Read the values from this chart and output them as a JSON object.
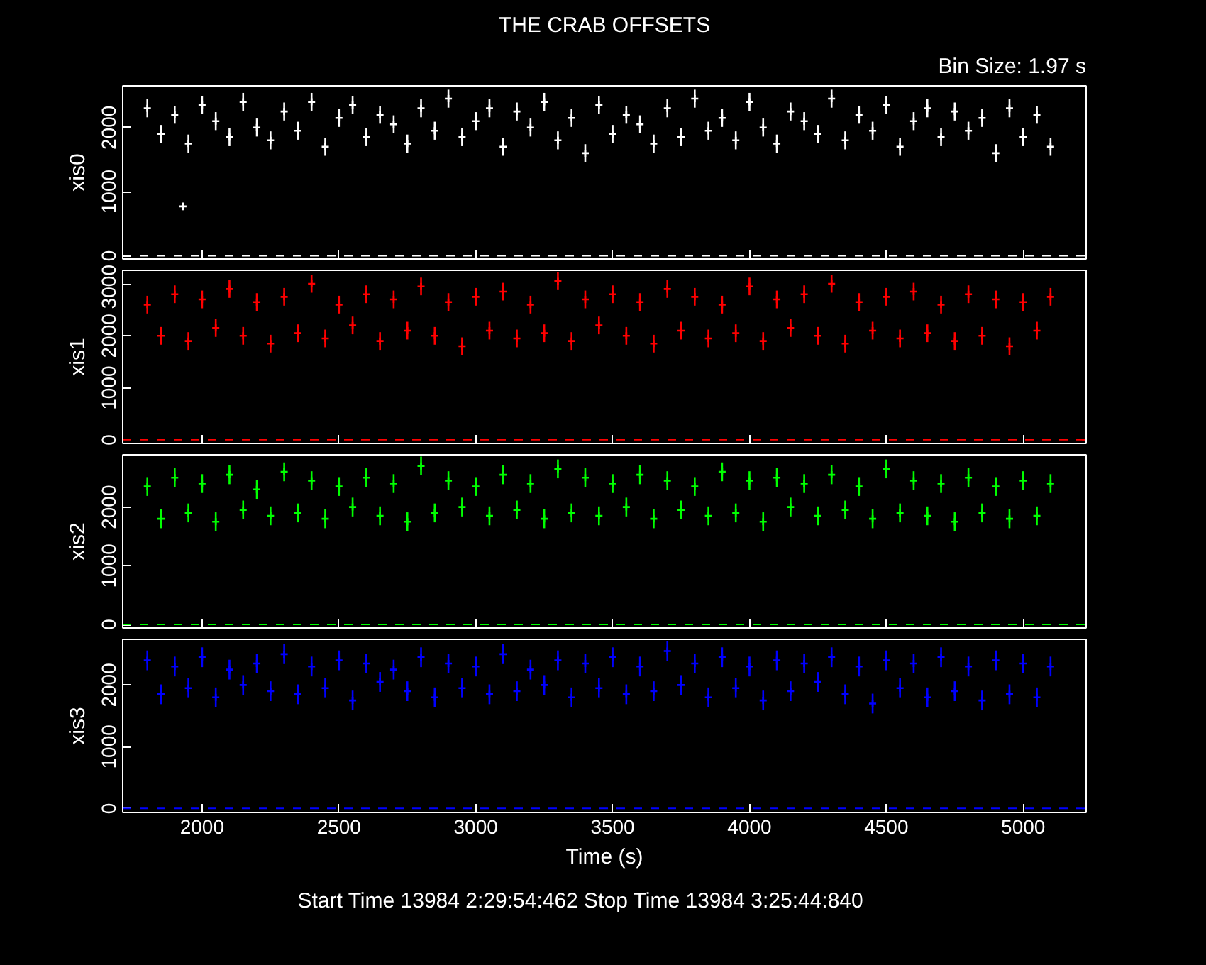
{
  "chart_data": [
    {
      "type": "scatter",
      "title": "THE CRAB OFFSETS",
      "annotations": [
        "Bin Size: 1.97 s"
      ],
      "ylabel": "xis0",
      "marker": "cross",
      "grid": false,
      "tick_labels": "y",
      "xlim": [
        1710,
        5230
      ],
      "xticks": [
        2000,
        2500,
        3000,
        3500,
        4000,
        4500,
        5000
      ],
      "ylim": [
        -50,
        2650
      ],
      "yticks": [
        0,
        1000,
        2000
      ],
      "ref_lines": [
        {
          "axis": "y",
          "value": 0,
          "color": "#ffffff",
          "line_style": "dashed"
        }
      ],
      "x": [
        1800,
        1850,
        1900,
        1930,
        1950,
        2000,
        2050,
        2100,
        2150,
        2200,
        2250,
        2300,
        2350,
        2400,
        2450,
        2500,
        2550,
        2600,
        2650,
        2700,
        2750,
        2800,
        2850,
        2900,
        2950,
        3000,
        3050,
        3100,
        3150,
        3200,
        3250,
        3300,
        3350,
        3400,
        3450,
        3500,
        3550,
        3600,
        3650,
        3700,
        3750,
        3800,
        3850,
        3900,
        3950,
        4000,
        4050,
        4100,
        4150,
        4200,
        4250,
        4300,
        4350,
        4400,
        4450,
        4500,
        4550,
        4600,
        4650,
        4700,
        4750,
        4800,
        4850,
        4900,
        4950,
        5000,
        5050,
        5100
      ],
      "series": [
        {
          "color": "#ffffff",
          "values": [
            2300,
            1900,
            2200,
            770,
            1750,
            2350,
            2100,
            1850,
            2400,
            2000,
            1800,
            2250,
            1950,
            2400,
            1700,
            2150,
            2350,
            1850,
            2200,
            2050,
            1750,
            2300,
            1950,
            2450,
            1850,
            2100,
            2300,
            1700,
            2250,
            2000,
            2400,
            1800,
            2150,
            1600,
            2350,
            1900,
            2200,
            2050,
            1750,
            2300,
            1850,
            2450,
            1950,
            2150,
            1800,
            2400,
            2000,
            1750,
            2250,
            2100,
            1900,
            2450,
            1800,
            2200,
            1950,
            2350,
            1700,
            2100,
            2300,
            1850,
            2250,
            1950,
            2150,
            1600,
            2300,
            1850,
            2200,
            1700
          ],
          "errors": [
            140,
            140,
            140,
            60,
            140,
            140,
            140,
            140,
            140,
            140,
            140,
            140,
            140,
            140,
            140,
            140,
            140,
            140,
            140,
            140,
            140,
            140,
            140,
            140,
            140,
            140,
            140,
            140,
            140,
            140,
            140,
            140,
            140,
            140,
            140,
            140,
            140,
            140,
            140,
            140,
            140,
            140,
            140,
            140,
            140,
            140,
            140,
            140,
            140,
            140,
            140,
            140,
            140,
            140,
            140,
            140,
            140,
            140,
            140,
            140,
            140,
            140,
            140,
            140,
            140,
            140,
            140,
            140
          ]
        }
      ]
    },
    {
      "type": "scatter",
      "ylabel": "xis1",
      "marker": "cross",
      "grid": false,
      "tick_labels": "y",
      "xlim": [
        1710,
        5230
      ],
      "xticks": [
        2000,
        2500,
        3000,
        3500,
        4000,
        4500,
        5000
      ],
      "ylim": [
        -70,
        3260
      ],
      "yticks": [
        0,
        1000,
        2000,
        3000
      ],
      "ref_lines": [
        {
          "axis": "y",
          "value": 0,
          "color": "#ff0000",
          "line_style": "dashed"
        }
      ],
      "x": [
        1800,
        1850,
        1900,
        1950,
        2000,
        2050,
        2100,
        2150,
        2200,
        2250,
        2300,
        2350,
        2400,
        2450,
        2500,
        2550,
        2600,
        2650,
        2700,
        2750,
        2800,
        2850,
        2900,
        2950,
        3000,
        3050,
        3100,
        3150,
        3200,
        3250,
        3300,
        3350,
        3400,
        3450,
        3500,
        3550,
        3600,
        3650,
        3700,
        3750,
        3800,
        3850,
        3900,
        3950,
        4000,
        4050,
        4100,
        4150,
        4200,
        4250,
        4300,
        4350,
        4400,
        4450,
        4500,
        4550,
        4600,
        4650,
        4700,
        4750,
        4800,
        4850,
        4900,
        4950,
        5000,
        5050,
        5100
      ],
      "series": [
        {
          "color": "#ff0000",
          "values": [
            2600,
            2000,
            2800,
            1900,
            2700,
            2150,
            2900,
            2000,
            2650,
            1850,
            2750,
            2050,
            3000,
            1950,
            2600,
            2200,
            2800,
            1900,
            2700,
            2100,
            2950,
            2000,
            2650,
            1800,
            2750,
            2100,
            2850,
            1950,
            2600,
            2050,
            3050,
            1900,
            2700,
            2200,
            2800,
            2000,
            2650,
            1850,
            2900,
            2100,
            2750,
            1950,
            2600,
            2050,
            2950,
            1900,
            2700,
            2150,
            2800,
            2000,
            3000,
            1850,
            2650,
            2100,
            2750,
            1950,
            2850,
            2050,
            2600,
            1900,
            2800,
            2000,
            2700,
            1800,
            2650,
            2100,
            2750
          ],
          "errors": [
            170,
            170,
            170,
            170,
            170,
            170,
            170,
            170,
            170,
            170,
            170,
            170,
            170,
            170,
            170,
            170,
            170,
            170,
            170,
            170,
            170,
            170,
            170,
            170,
            170,
            170,
            170,
            170,
            170,
            170,
            170,
            170,
            170,
            170,
            170,
            170,
            170,
            170,
            170,
            170,
            170,
            170,
            170,
            170,
            170,
            170,
            170,
            170,
            170,
            170,
            170,
            170,
            170,
            170,
            170,
            170,
            170,
            170,
            170,
            170,
            170,
            170,
            170,
            170,
            170,
            170,
            170
          ]
        }
      ]
    },
    {
      "type": "scatter",
      "ylabel": "xis2",
      "marker": "cross",
      "grid": false,
      "tick_labels": "y",
      "xlim": [
        1710,
        5230
      ],
      "xticks": [
        2000,
        2500,
        3000,
        3500,
        4000,
        4500,
        5000
      ],
      "ylim": [
        -60,
        2890
      ],
      "yticks": [
        0,
        1000,
        2000
      ],
      "ref_lines": [
        {
          "axis": "y",
          "value": 0,
          "color": "#00ff00",
          "line_style": "dashed"
        }
      ],
      "x": [
        1800,
        1850,
        1900,
        1950,
        2000,
        2050,
        2100,
        2150,
        2200,
        2250,
        2300,
        2350,
        2400,
        2450,
        2500,
        2550,
        2600,
        2650,
        2700,
        2750,
        2800,
        2850,
        2900,
        2950,
        3000,
        3050,
        3100,
        3150,
        3200,
        3250,
        3300,
        3350,
        3400,
        3450,
        3500,
        3550,
        3600,
        3650,
        3700,
        3750,
        3800,
        3850,
        3900,
        3950,
        4000,
        4050,
        4100,
        4150,
        4200,
        4250,
        4300,
        4350,
        4400,
        4450,
        4500,
        4550,
        4600,
        4650,
        4700,
        4750,
        4800,
        4850,
        4900,
        4950,
        5000,
        5050,
        5100
      ],
      "series": [
        {
          "color": "#00ff00",
          "values": [
            2350,
            1800,
            2500,
            1900,
            2400,
            1750,
            2550,
            1950,
            2300,
            1850,
            2600,
            1900,
            2450,
            1800,
            2350,
            2000,
            2500,
            1850,
            2400,
            1750,
            2700,
            1900,
            2450,
            2000,
            2350,
            1850,
            2550,
            1950,
            2400,
            1800,
            2650,
            1900,
            2500,
            1850,
            2400,
            2000,
            2550,
            1800,
            2450,
            1950,
            2350,
            1850,
            2600,
            1900,
            2450,
            1750,
            2500,
            2000,
            2400,
            1850,
            2550,
            1950,
            2350,
            1800,
            2650,
            1900,
            2450,
            1850,
            2400,
            1750,
            2500,
            1900,
            2350,
            1800,
            2450,
            1850,
            2400
          ],
          "errors": [
            160,
            160,
            160,
            160,
            160,
            160,
            160,
            160,
            160,
            160,
            160,
            160,
            160,
            160,
            160,
            160,
            160,
            160,
            160,
            160,
            160,
            160,
            160,
            160,
            160,
            160,
            160,
            160,
            160,
            160,
            160,
            160,
            160,
            160,
            160,
            160,
            160,
            160,
            160,
            160,
            160,
            160,
            160,
            160,
            160,
            160,
            160,
            160,
            160,
            160,
            160,
            160,
            160,
            160,
            160,
            160,
            160,
            160,
            160,
            160,
            160,
            160,
            160,
            160,
            160,
            160,
            160
          ]
        }
      ]
    },
    {
      "type": "scatter",
      "ylabel": "xis3",
      "xlabel": "Time (s)",
      "annotations": [
        "Start Time 13984   2:29:54:462     Stop Time 13984   3:25:44:840"
      ],
      "marker": "cross",
      "grid": false,
      "xlim": [
        1710,
        5230
      ],
      "xticks": [
        2000,
        2500,
        3000,
        3500,
        4000,
        4500,
        5000
      ],
      "ylim": [
        -65,
        2740
      ],
      "yticks": [
        0,
        1000,
        2000
      ],
      "ref_lines": [
        {
          "axis": "y",
          "value": 0,
          "color": "#0000ff",
          "line_style": "dashed"
        }
      ],
      "x": [
        1800,
        1850,
        1900,
        1950,
        2000,
        2050,
        2100,
        2150,
        2200,
        2250,
        2300,
        2350,
        2400,
        2450,
        2500,
        2550,
        2600,
        2650,
        2700,
        2750,
        2800,
        2850,
        2900,
        2950,
        3000,
        3050,
        3100,
        3150,
        3200,
        3250,
        3300,
        3350,
        3400,
        3450,
        3500,
        3550,
        3600,
        3650,
        3700,
        3750,
        3800,
        3850,
        3900,
        3950,
        4000,
        4050,
        4100,
        4150,
        4200,
        4250,
        4300,
        4350,
        4400,
        4450,
        4500,
        4550,
        4600,
        4650,
        4700,
        4750,
        4800,
        4850,
        4900,
        4950,
        5000,
        5050,
        5100
      ],
      "series": [
        {
          "color": "#0000ff",
          "values": [
            2400,
            1850,
            2300,
            1950,
            2450,
            1800,
            2250,
            2000,
            2350,
            1900,
            2500,
            1850,
            2300,
            1950,
            2400,
            1750,
            2350,
            2050,
            2250,
            1900,
            2450,
            1800,
            2350,
            1950,
            2300,
            1850,
            2500,
            1900,
            2250,
            2000,
            2400,
            1800,
            2350,
            1950,
            2450,
            1850,
            2300,
            1900,
            2550,
            2000,
            2350,
            1800,
            2450,
            1950,
            2300,
            1750,
            2400,
            1900,
            2350,
            2050,
            2450,
            1850,
            2300,
            1700,
            2400,
            1950,
            2350,
            1800,
            2450,
            1900,
            2300,
            1750,
            2400,
            1850,
            2350,
            1800,
            2300
          ],
          "errors": [
            160,
            160,
            160,
            160,
            160,
            160,
            160,
            160,
            160,
            160,
            160,
            160,
            160,
            160,
            160,
            160,
            160,
            160,
            160,
            160,
            160,
            160,
            160,
            160,
            160,
            160,
            160,
            160,
            160,
            160,
            160,
            160,
            160,
            160,
            160,
            160,
            160,
            160,
            160,
            160,
            160,
            160,
            160,
            160,
            160,
            160,
            160,
            160,
            160,
            160,
            160,
            160,
            160,
            160,
            160,
            160,
            160,
            160,
            160,
            160,
            160,
            160,
            160,
            160,
            160,
            160,
            160
          ]
        }
      ]
    }
  ]
}
